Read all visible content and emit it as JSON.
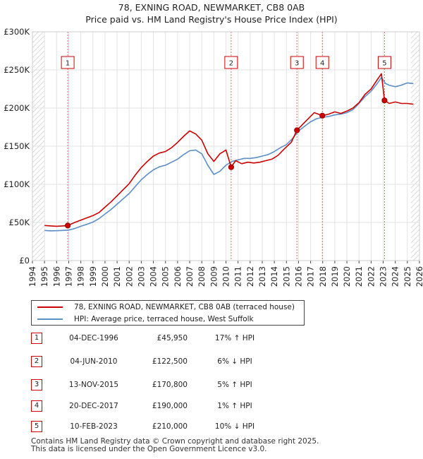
{
  "chart_data": {
    "type": "line",
    "title": "78, EXNING ROAD, NEWMARKET, CB8 0AB",
    "subtitle": "Price paid vs. HM Land Registry's House Price Index (HPI)",
    "xlim": [
      1994,
      2026
    ],
    "ylim": [
      0,
      300000
    ],
    "y_ticks": [
      {
        "value": 0,
        "label": "£0"
      },
      {
        "value": 50000,
        "label": "£50K"
      },
      {
        "value": 100000,
        "label": "£100K"
      },
      {
        "value": 150000,
        "label": "£150K"
      },
      {
        "value": 200000,
        "label": "£200K"
      },
      {
        "value": 250000,
        "label": "£250K"
      },
      {
        "value": 300000,
        "label": "£300K"
      }
    ],
    "x_ticks": [
      "1994",
      "1995",
      "1996",
      "1997",
      "1998",
      "1999",
      "2000",
      "2001",
      "2002",
      "2003",
      "2004",
      "2005",
      "2006",
      "2007",
      "2008",
      "2009",
      "2010",
      "2011",
      "2012",
      "2013",
      "2014",
      "2015",
      "2016",
      "2017",
      "2018",
      "2019",
      "2020",
      "2021",
      "2022",
      "2023",
      "2024",
      "2025",
      "2026"
    ],
    "grid": true,
    "hatched_ranges": [
      [
        1994,
        1995
      ],
      [
        2025.3,
        2026
      ]
    ],
    "legend_position": "below",
    "series": [
      {
        "name": "78, EXNING ROAD, NEWMARKET, CB8 0AB (terraced house)",
        "color": "#cc0000",
        "x": [
          1995,
          1995.5,
          1996,
          1996.5,
          1996.92,
          1997.5,
          1998,
          1998.5,
          1999,
          1999.5,
          2000,
          2000.5,
          2001,
          2001.5,
          2002,
          2002.5,
          2003,
          2003.5,
          2004,
          2004.5,
          2005,
          2005.5,
          2006,
          2006.5,
          2007,
          2007.5,
          2008,
          2008.5,
          2009,
          2009.5,
          2010,
          2010.43,
          2010.8,
          2011.3,
          2011.8,
          2012.3,
          2012.8,
          2013.3,
          2013.8,
          2014.3,
          2014.8,
          2015.4,
          2015.87,
          2016.3,
          2016.8,
          2017.3,
          2017.97,
          2018.5,
          2019,
          2019.5,
          2020,
          2020.5,
          2021,
          2021.5,
          2022,
          2022.5,
          2022.85,
          2023.11,
          2023.5,
          2024,
          2024.5,
          2025,
          2025.5
        ],
        "y": [
          46000,
          45500,
          45000,
          45500,
          45950,
          50000,
          53000,
          56000,
          59000,
          63000,
          70000,
          77000,
          85000,
          93000,
          101000,
          112000,
          122000,
          130000,
          137000,
          141000,
          143000,
          148000,
          155000,
          163000,
          170000,
          166000,
          158000,
          140000,
          130000,
          140000,
          145000,
          122500,
          131000,
          127000,
          129000,
          128000,
          129000,
          131000,
          133000,
          138000,
          146000,
          155000,
          170800,
          178000,
          186000,
          194000,
          190000,
          192000,
          195000,
          193000,
          196000,
          200000,
          207000,
          218000,
          225000,
          237000,
          245000,
          210000,
          206000,
          208000,
          206000,
          206000,
          205000
        ]
      },
      {
        "name": "HPI: Average price, terraced house, West Suffolk",
        "color": "#5b8fc7",
        "x": [
          1995,
          1995.5,
          1996,
          1996.5,
          1997,
          1997.5,
          1998,
          1998.5,
          1999,
          1999.5,
          2000,
          2000.5,
          2001,
          2001.5,
          2002,
          2002.5,
          2003,
          2003.5,
          2004,
          2004.5,
          2005,
          2005.5,
          2006,
          2006.5,
          2007,
          2007.5,
          2008,
          2008.5,
          2009,
          2009.5,
          2010,
          2010.5,
          2011,
          2011.5,
          2012,
          2012.5,
          2013,
          2013.5,
          2014,
          2014.5,
          2015,
          2015.5,
          2016,
          2016.5,
          2017,
          2017.5,
          2018,
          2018.5,
          2019,
          2019.5,
          2020,
          2020.5,
          2021,
          2021.5,
          2022,
          2022.5,
          2022.85,
          2023.2,
          2023.5,
          2024,
          2024.5,
          2025,
          2025.5
        ],
        "y": [
          39500,
          39000,
          39200,
          39500,
          40000,
          42000,
          45000,
          47500,
          50500,
          55000,
          61000,
          67000,
          74000,
          81000,
          88000,
          97000,
          106000,
          113000,
          119000,
          123000,
          125000,
          129000,
          133000,
          139000,
          144000,
          145000,
          140000,
          125000,
          113000,
          117000,
          125000,
          130000,
          132000,
          134000,
          134000,
          135000,
          137000,
          139000,
          143000,
          148000,
          152000,
          160000,
          170000,
          176000,
          182000,
          186000,
          188000,
          189000,
          191000,
          192000,
          194000,
          198000,
          206000,
          215000,
          222000,
          232000,
          240000,
          232000,
          230000,
          228000,
          230000,
          233000,
          232000
        ]
      }
    ],
    "sales": [
      {
        "num": "1",
        "x": 1996.92,
        "price_value": 45950,
        "date": "04-DEC-1996",
        "price": "£45,950",
        "hpi": "17% ↑ HPI"
      },
      {
        "num": "2",
        "x": 2010.43,
        "price_value": 122500,
        "date": "04-JUN-2010",
        "price": "£122,500",
        "hpi": "6% ↓ HPI"
      },
      {
        "num": "3",
        "x": 2015.87,
        "price_value": 170800,
        "date": "13-NOV-2015",
        "price": "£170,800",
        "hpi": "5% ↑ HPI"
      },
      {
        "num": "4",
        "x": 2017.97,
        "price_value": 190000,
        "date": "20-DEC-2017",
        "price": "£190,000",
        "hpi": "1% ↑ HPI"
      },
      {
        "num": "5",
        "x": 2023.11,
        "price_value": 210000,
        "date": "10-FEB-2023",
        "price": "£210,000",
        "hpi": "10% ↓ HPI"
      }
    ]
  },
  "footer": {
    "line1": "Contains HM Land Registry data © Crown copyright and database right 2025.",
    "line2": "This data is licensed under the Open Government Licence v3.0."
  }
}
